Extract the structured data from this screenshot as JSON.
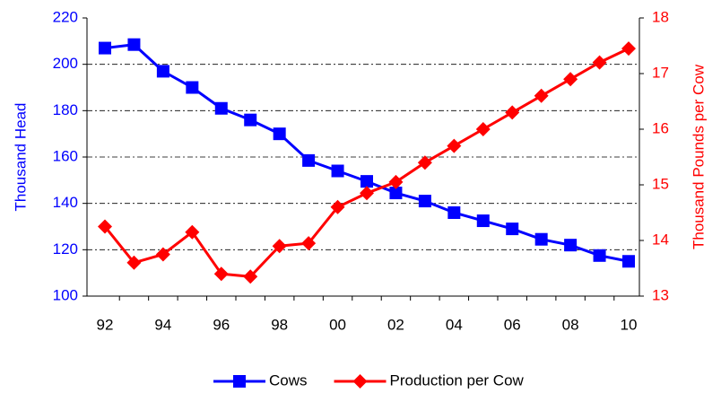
{
  "chart_data": {
    "type": "line",
    "categories": [
      "92",
      null,
      "94",
      null,
      "96",
      null,
      "98",
      null,
      "00",
      null,
      "02",
      null,
      "04",
      null,
      "06",
      null,
      "08",
      null,
      "10"
    ],
    "series": [
      {
        "name": "Cows",
        "color": "#0000ff",
        "marker": "square",
        "values": [
          207,
          208.5,
          197,
          190,
          181,
          176,
          170,
          158.5,
          154,
          149.5,
          144.5,
          141,
          136,
          132.5,
          129,
          124.5,
          122,
          117.5,
          115
        ]
      },
      {
        "name": "Production per Cow",
        "color": "#ff0000",
        "marker": "diamond",
        "axis": "y2",
        "values": [
          14.25,
          13.6,
          13.75,
          14.15,
          13.4,
          13.35,
          13.9,
          13.95,
          14.6,
          14.85,
          15.05,
          15.4,
          15.7,
          16.0,
          16.3,
          16.6,
          16.9,
          17.2,
          17.45
        ]
      }
    ],
    "ylabel": "Thousand Head",
    "y2label": "Thousand Pounds per Cow",
    "ylim": [
      100,
      220
    ],
    "yticks": [
      100,
      120,
      140,
      160,
      180,
      200,
      220
    ],
    "y2lim": [
      13,
      18
    ],
    "y2ticks": [
      13,
      14,
      15,
      16,
      17,
      18
    ],
    "grid": true,
    "legend": "bottom"
  }
}
